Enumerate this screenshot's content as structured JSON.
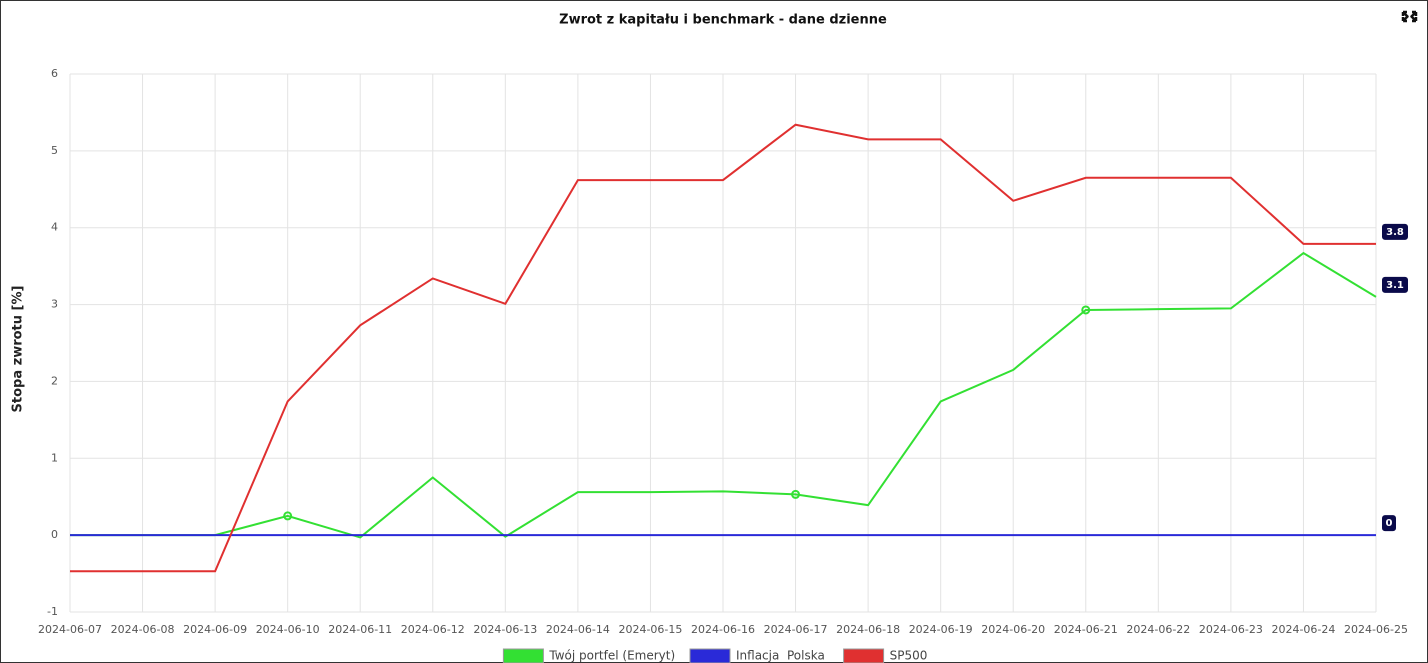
{
  "chart_data": {
    "type": "line",
    "title": "Zwrot z kapitału i benchmark - dane dzienne",
    "y_label": "Stopa zwrotu [%]",
    "categories": [
      "2024-06-07",
      "2024-06-08",
      "2024-06-09",
      "2024-06-10",
      "2024-06-11",
      "2024-06-12",
      "2024-06-13",
      "2024-06-14",
      "2024-06-15",
      "2024-06-16",
      "2024-06-17",
      "2024-06-18",
      "2024-06-19",
      "2024-06-20",
      "2024-06-21",
      "2024-06-22",
      "2024-06-23",
      "2024-06-24",
      "2024-06-25"
    ],
    "series": [
      {
        "name": "Twój portfel (Emeryt)",
        "color": "#33e033",
        "values": [
          0,
          0,
          0,
          0.25,
          -0.03,
          0.75,
          -0.02,
          0.56,
          0.56,
          0.57,
          0.53,
          0.39,
          1.74,
          2.15,
          2.93,
          2.94,
          2.95,
          3.67,
          3.1
        ],
        "value_labels": [
          null,
          null,
          null,
          null,
          null,
          null,
          null,
          null,
          null,
          null,
          null,
          null,
          null,
          null,
          null,
          null,
          null,
          null,
          "3.1"
        ],
        "markers": [
          3,
          10,
          14
        ]
      },
      {
        "name": "Inflacja  Polska",
        "color": "#2a2ad8",
        "values": [
          0,
          0,
          0,
          0,
          0,
          0,
          0,
          0,
          0,
          0,
          0,
          0,
          0,
          0,
          0,
          0,
          0,
          0,
          0
        ],
        "value_labels": [
          null,
          null,
          null,
          null,
          null,
          null,
          null,
          null,
          null,
          null,
          null,
          null,
          null,
          null,
          null,
          null,
          null,
          null,
          "0"
        ]
      },
      {
        "name": "SP500",
        "color": "#e03030",
        "values": [
          -0.47,
          -0.47,
          -0.47,
          1.74,
          2.73,
          3.34,
          3.01,
          4.62,
          4.62,
          4.62,
          5.34,
          5.15,
          5.15,
          4.35,
          4.65,
          4.65,
          4.65,
          3.79,
          3.79
        ],
        "value_labels": [
          null,
          null,
          null,
          null,
          null,
          null,
          null,
          null,
          null,
          null,
          null,
          null,
          null,
          null,
          null,
          null,
          null,
          null,
          "3.8"
        ]
      }
    ],
    "ylim": [
      -1,
      6
    ],
    "yticks": [
      -1,
      0,
      1,
      2,
      3,
      4,
      5,
      6
    ],
    "grid": true,
    "legend": "bottom"
  }
}
